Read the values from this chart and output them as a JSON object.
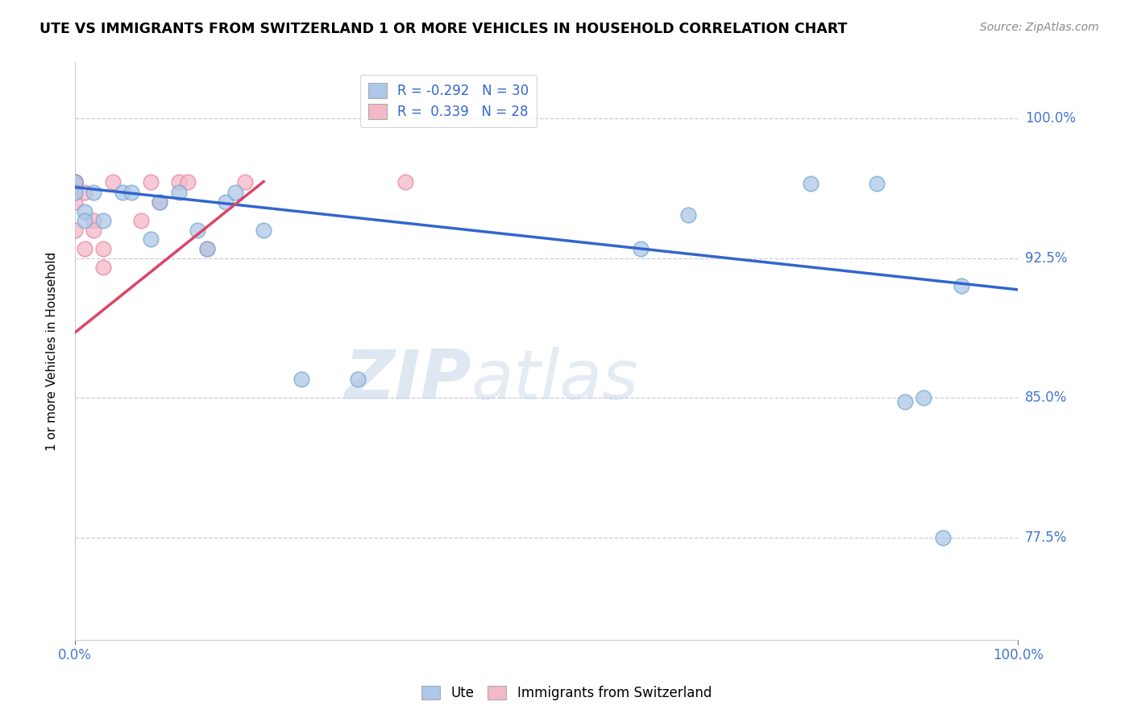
{
  "title": "UTE VS IMMIGRANTS FROM SWITZERLAND 1 OR MORE VEHICLES IN HOUSEHOLD CORRELATION CHART",
  "source": "Source: ZipAtlas.com",
  "ylabel": "1 or more Vehicles in Household",
  "xlim": [
    0.0,
    1.0
  ],
  "ylim": [
    0.72,
    1.03
  ],
  "ytick_labels": [
    "77.5%",
    "85.0%",
    "92.5%",
    "100.0%"
  ],
  "ytick_vals": [
    0.775,
    0.85,
    0.925,
    1.0
  ],
  "legend_R_blue": "-0.292",
  "legend_N_blue": "30",
  "legend_R_pink": "0.339",
  "legend_N_pink": "28",
  "blue_color": "#adc8e8",
  "blue_edge_color": "#7aaad0",
  "pink_color": "#f5b8c8",
  "pink_edge_color": "#e88aa0",
  "trend_blue_color": "#3366cc",
  "trend_pink_color": "#dd4466",
  "watermark_zip": "ZIP",
  "watermark_atlas": "atlas",
  "blue_points_x": [
    0.0,
    0.0,
    0.01,
    0.01,
    0.02,
    0.03,
    0.05,
    0.06,
    0.08,
    0.09,
    0.11,
    0.13,
    0.14,
    0.16,
    0.17,
    0.2,
    0.24,
    0.3,
    0.6,
    0.65,
    0.78,
    0.85,
    0.88,
    0.9,
    0.92,
    0.94
  ],
  "blue_points_y": [
    0.966,
    0.96,
    0.95,
    0.945,
    0.96,
    0.945,
    0.96,
    0.96,
    0.935,
    0.955,
    0.96,
    0.94,
    0.93,
    0.955,
    0.96,
    0.94,
    0.86,
    0.86,
    0.93,
    0.948,
    0.965,
    0.965,
    0.848,
    0.85,
    0.775,
    0.91
  ],
  "pink_points_x": [
    0.0,
    0.0,
    0.0,
    0.0,
    0.0,
    0.0,
    0.0,
    0.0,
    0.0,
    0.01,
    0.01,
    0.02,
    0.02,
    0.03,
    0.03,
    0.04,
    0.07,
    0.08,
    0.09,
    0.11,
    0.12,
    0.14,
    0.18,
    0.35
  ],
  "pink_points_y": [
    0.966,
    0.966,
    0.966,
    0.966,
    0.966,
    0.966,
    0.96,
    0.955,
    0.94,
    0.96,
    0.93,
    0.945,
    0.94,
    0.92,
    0.93,
    0.966,
    0.945,
    0.966,
    0.955,
    0.966,
    0.966,
    0.93,
    0.966,
    0.966
  ],
  "blue_trend_x0": 0.0,
  "blue_trend_x1": 1.0,
  "blue_trend_y0": 0.963,
  "blue_trend_y1": 0.908,
  "pink_trend_x0": 0.0,
  "pink_trend_x1": 0.2,
  "pink_trend_y0": 0.885,
  "pink_trend_y1": 0.966
}
